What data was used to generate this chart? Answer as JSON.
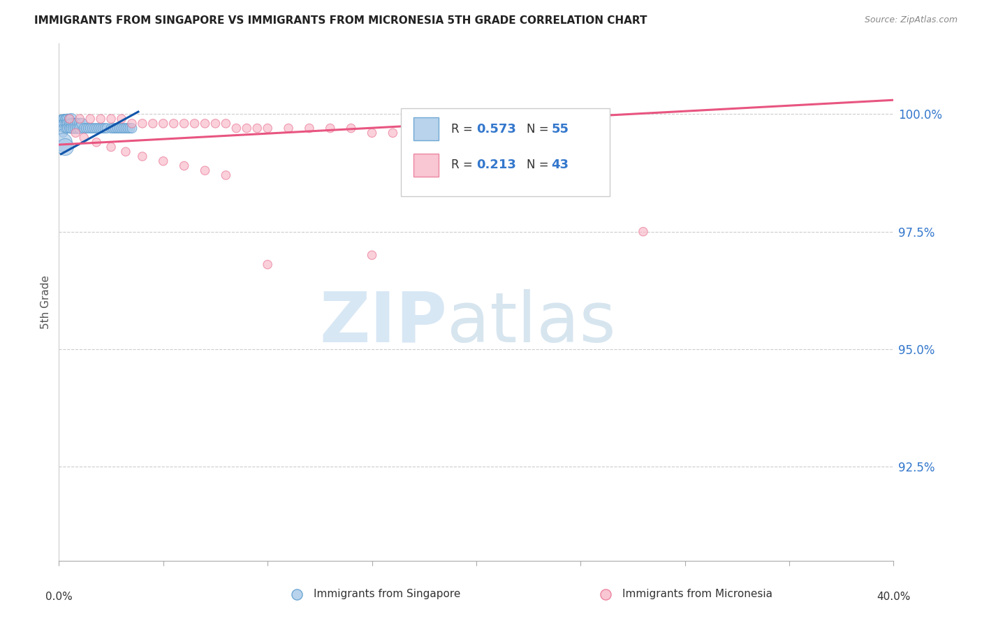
{
  "title": "IMMIGRANTS FROM SINGAPORE VS IMMIGRANTS FROM MICRONESIA 5TH GRADE CORRELATION CHART",
  "source": "Source: ZipAtlas.com",
  "ylabel": "5th Grade",
  "ytick_labels": [
    "100.0%",
    "97.5%",
    "95.0%",
    "92.5%"
  ],
  "ytick_values": [
    1.0,
    0.975,
    0.95,
    0.925
  ],
  "xmin": 0.0,
  "xmax": 0.4,
  "ymin": 0.905,
  "ymax": 1.015,
  "legend1_R": "0.573",
  "legend1_N": "55",
  "legend2_R": "0.213",
  "legend2_N": "43",
  "singapore_color": "#a8c8e8",
  "singapore_edge": "#5599cc",
  "micronesia_color": "#f8b8c8",
  "micronesia_edge": "#e87090",
  "singapore_line_color": "#1155aa",
  "micronesia_line_color": "#e85580",
  "sg_line_x": [
    0.001,
    0.038
  ],
  "sg_line_y": [
    0.9915,
    1.0005
  ],
  "mc_line_x": [
    0.0,
    0.4
  ],
  "mc_line_y": [
    0.9935,
    1.003
  ],
  "singapore_points_x": [
    0.001,
    0.001,
    0.001,
    0.002,
    0.002,
    0.002,
    0.002,
    0.002,
    0.003,
    0.003,
    0.003,
    0.003,
    0.004,
    0.004,
    0.004,
    0.005,
    0.005,
    0.005,
    0.006,
    0.006,
    0.006,
    0.007,
    0.007,
    0.008,
    0.008,
    0.009,
    0.009,
    0.01,
    0.01,
    0.011,
    0.012,
    0.013,
    0.014,
    0.015,
    0.016,
    0.017,
    0.018,
    0.019,
    0.02,
    0.021,
    0.022,
    0.023,
    0.025,
    0.026,
    0.027,
    0.028,
    0.029,
    0.03,
    0.031,
    0.032,
    0.033,
    0.034,
    0.035,
    0.002,
    0.003
  ],
  "singapore_points_y": [
    0.999,
    0.999,
    0.998,
    0.999,
    0.999,
    0.998,
    0.997,
    0.996,
    0.999,
    0.999,
    0.998,
    0.997,
    0.999,
    0.998,
    0.997,
    0.999,
    0.998,
    0.997,
    0.999,
    0.998,
    0.997,
    0.998,
    0.997,
    0.998,
    0.997,
    0.998,
    0.997,
    0.998,
    0.997,
    0.998,
    0.997,
    0.997,
    0.997,
    0.997,
    0.997,
    0.997,
    0.997,
    0.997,
    0.997,
    0.997,
    0.997,
    0.997,
    0.997,
    0.997,
    0.997,
    0.997,
    0.997,
    0.997,
    0.997,
    0.997,
    0.997,
    0.997,
    0.997,
    0.994,
    0.993
  ],
  "singapore_sizes": [
    60,
    60,
    60,
    80,
    80,
    80,
    80,
    80,
    80,
    80,
    80,
    80,
    100,
    100,
    100,
    100,
    100,
    100,
    120,
    120,
    120,
    120,
    120,
    120,
    120,
    120,
    120,
    120,
    120,
    120,
    100,
    100,
    100,
    100,
    100,
    100,
    100,
    100,
    100,
    100,
    100,
    100,
    100,
    100,
    100,
    100,
    100,
    100,
    100,
    100,
    100,
    100,
    100,
    350,
    300
  ],
  "micronesia_points_x": [
    0.005,
    0.01,
    0.015,
    0.02,
    0.025,
    0.03,
    0.035,
    0.04,
    0.045,
    0.05,
    0.055,
    0.06,
    0.065,
    0.07,
    0.075,
    0.08,
    0.085,
    0.09,
    0.095,
    0.1,
    0.11,
    0.12,
    0.13,
    0.14,
    0.15,
    0.16,
    0.17,
    0.18,
    0.19,
    0.2,
    0.008,
    0.012,
    0.018,
    0.025,
    0.032,
    0.04,
    0.05,
    0.06,
    0.07,
    0.08,
    0.28,
    0.15,
    0.1
  ],
  "micronesia_points_y": [
    0.999,
    0.999,
    0.999,
    0.999,
    0.999,
    0.999,
    0.998,
    0.998,
    0.998,
    0.998,
    0.998,
    0.998,
    0.998,
    0.998,
    0.998,
    0.998,
    0.997,
    0.997,
    0.997,
    0.997,
    0.997,
    0.997,
    0.997,
    0.997,
    0.996,
    0.996,
    0.996,
    0.996,
    0.996,
    0.996,
    0.996,
    0.995,
    0.994,
    0.993,
    0.992,
    0.991,
    0.99,
    0.989,
    0.988,
    0.987,
    0.975,
    0.97,
    0.968
  ],
  "micronesia_sizes": [
    80,
    80,
    80,
    80,
    80,
    80,
    80,
    80,
    80,
    80,
    80,
    80,
    80,
    80,
    80,
    80,
    80,
    80,
    80,
    80,
    80,
    80,
    80,
    80,
    80,
    80,
    80,
    80,
    80,
    80,
    80,
    80,
    80,
    80,
    80,
    80,
    80,
    80,
    80,
    80,
    80,
    80,
    80
  ],
  "watermark_zip_color": "#c8ddf0",
  "watermark_atlas_color": "#b0cce0",
  "bottom_legend": [
    {
      "label": "Immigrants from Singapore",
      "color": "#a8c8e8",
      "edge": "#5599cc"
    },
    {
      "label": "Immigrants from Micronesia",
      "color": "#f8b8c8",
      "edge": "#e87090"
    }
  ]
}
